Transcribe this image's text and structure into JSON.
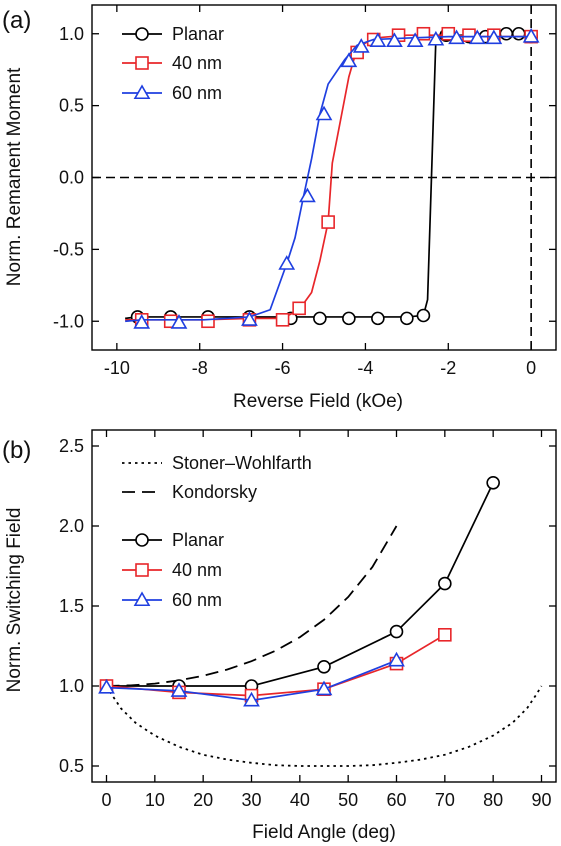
{
  "chart_data": [
    {
      "type": "line",
      "panel_label": "(a)",
      "xlabel": "Reverse Field (kOe)",
      "ylabel": "Norm. Remanent Moment",
      "xlim": [
        -10.6,
        0.6
      ],
      "ylim": [
        -1.2,
        1.2
      ],
      "xticks": [
        -10,
        -8,
        -6,
        -4,
        -2,
        0
      ],
      "xtick_labels": [
        "-10",
        "-8",
        "-6",
        "-4",
        "-2",
        "0"
      ],
      "yticks": [
        -1.0,
        -0.5,
        0.0,
        0.5,
        1.0
      ],
      "ytick_labels": [
        "-1.0",
        "-0.5",
        "0.0",
        "0.5",
        "1.0"
      ],
      "legend_position": "top-left",
      "reference_lines": [
        {
          "orientation": "horizontal",
          "value": 0,
          "style": "dashed"
        },
        {
          "orientation": "vertical",
          "value": 0,
          "style": "dashed"
        }
      ],
      "series": [
        {
          "name": "Planar",
          "color": "#000000",
          "marker": "circle",
          "line": [
            [
              -9.8,
              -0.98
            ],
            [
              -9.5,
              -0.97
            ],
            [
              -8.7,
              -0.97
            ],
            [
              -7.8,
              -0.97
            ],
            [
              -6.8,
              -0.97
            ],
            [
              -5.8,
              -0.97
            ],
            [
              -5.1,
              -0.97
            ],
            [
              -4.4,
              -0.97
            ],
            [
              -3.7,
              -0.97
            ],
            [
              -3.0,
              -0.97
            ],
            [
              -2.6,
              -0.96
            ],
            [
              -2.5,
              -0.85
            ],
            [
              -2.3,
              0.96
            ],
            [
              -2.0,
              0.99
            ],
            [
              -1.5,
              0.99
            ],
            [
              -0.9,
              0.99
            ],
            [
              -0.4,
              0.99
            ],
            [
              0,
              0.99
            ]
          ],
          "markers": [
            [
              -9.5,
              -0.97
            ],
            [
              -8.7,
              -0.97
            ],
            [
              -7.8,
              -0.97
            ],
            [
              -6.8,
              -0.97
            ],
            [
              -5.8,
              -0.98
            ],
            [
              -5.1,
              -0.98
            ],
            [
              -4.4,
              -0.98
            ],
            [
              -3.7,
              -0.98
            ],
            [
              -3.0,
              -0.98
            ],
            [
              -2.6,
              -0.96
            ],
            [
              -2.05,
              0.99
            ],
            [
              -1.5,
              0.98
            ],
            [
              -1.1,
              0.98
            ],
            [
              -0.6,
              1.0
            ],
            [
              -0.3,
              1.0
            ],
            [
              0,
              0.98
            ]
          ]
        },
        {
          "name": "40 nm",
          "color": "#e8262a",
          "marker": "square",
          "line": [
            [
              -9.8,
              -0.99
            ],
            [
              -9.4,
              -0.99
            ],
            [
              -8.7,
              -0.99
            ],
            [
              -7.9,
              -0.99
            ],
            [
              -6.8,
              -0.98
            ],
            [
              -6.0,
              -0.98
            ],
            [
              -5.6,
              -0.92
            ],
            [
              -5.3,
              -0.8
            ],
            [
              -5.1,
              -0.58
            ],
            [
              -4.9,
              -0.31
            ],
            [
              -4.8,
              0.1
            ],
            [
              -4.6,
              0.4
            ],
            [
              -4.4,
              0.7
            ],
            [
              -4.2,
              0.9
            ],
            [
              -3.8,
              0.97
            ],
            [
              -3.0,
              0.99
            ],
            [
              -2.0,
              0.99
            ],
            [
              -1.2,
              0.98
            ],
            [
              0,
              0.98
            ]
          ],
          "markers": [
            [
              -9.4,
              -0.99
            ],
            [
              -8.7,
              -1.0
            ],
            [
              -7.8,
              -1.0
            ],
            [
              -6.8,
              -0.99
            ],
            [
              -6.0,
              -0.99
            ],
            [
              -5.6,
              -0.91
            ],
            [
              -4.9,
              -0.31
            ],
            [
              -4.2,
              0.87
            ],
            [
              -3.8,
              0.96
            ],
            [
              -3.2,
              0.99
            ],
            [
              -2.6,
              1.0
            ],
            [
              -2.0,
              1.0
            ],
            [
              -1.5,
              0.99
            ],
            [
              -0.9,
              0.99
            ],
            [
              0,
              0.98
            ]
          ]
        },
        {
          "name": "60 nm",
          "color": "#1f3fe0",
          "marker": "triangle",
          "line": [
            [
              -9.8,
              -1.0
            ],
            [
              -9.4,
              -0.99
            ],
            [
              -8.5,
              -0.99
            ],
            [
              -7.9,
              -0.99
            ],
            [
              -6.8,
              -0.97
            ],
            [
              -6.3,
              -0.92
            ],
            [
              -5.9,
              -0.6
            ],
            [
              -5.7,
              -0.42
            ],
            [
              -5.5,
              -0.14
            ],
            [
              -5.3,
              0.13
            ],
            [
              -5.1,
              0.44
            ],
            [
              -4.9,
              0.65
            ],
            [
              -4.5,
              0.82
            ],
            [
              -4.2,
              0.92
            ],
            [
              -3.8,
              0.96
            ],
            [
              -3.0,
              0.97
            ],
            [
              -2.0,
              0.98
            ],
            [
              -1.2,
              0.98
            ],
            [
              0,
              0.98
            ]
          ],
          "markers": [
            [
              -9.4,
              -1.01
            ],
            [
              -8.5,
              -1.01
            ],
            [
              -6.8,
              -0.99
            ],
            [
              -5.9,
              -0.6
            ],
            [
              -5.4,
              -0.13
            ],
            [
              -5.0,
              0.44
            ],
            [
              -4.4,
              0.81
            ],
            [
              -4.1,
              0.91
            ],
            [
              -3.7,
              0.95
            ],
            [
              -3.3,
              0.95
            ],
            [
              -2.8,
              0.95
            ],
            [
              -2.3,
              0.96
            ],
            [
              -1.8,
              0.97
            ],
            [
              -1.3,
              0.97
            ],
            [
              -0.9,
              0.97
            ],
            [
              0,
              0.98
            ]
          ]
        }
      ]
    },
    {
      "type": "line",
      "panel_label": "(b)",
      "xlabel": "Field Angle (deg)",
      "ylabel": "Norm. Switching Field",
      "xlim": [
        -3,
        93
      ],
      "ylim": [
        0.4,
        2.6
      ],
      "xticks": [
        0,
        10,
        20,
        30,
        40,
        50,
        60,
        70,
        80,
        90
      ],
      "xtick_labels": [
        "0",
        "10",
        "20",
        "30",
        "40",
        "50",
        "60",
        "70",
        "80",
        "90"
      ],
      "yticks": [
        0.5,
        1.0,
        1.5,
        2.0,
        2.5
      ],
      "ytick_labels": [
        "0.5",
        "1.0",
        "1.5",
        "2.0",
        "2.5"
      ],
      "legend_position": "top-left",
      "series": [
        {
          "name": "Stoner–Wohlfarth",
          "color": "#000000",
          "style": "dotted",
          "line": [
            [
              0,
              1.0
            ],
            [
              1,
              0.95
            ],
            [
              3,
              0.86
            ],
            [
              6,
              0.77
            ],
            [
              10,
              0.69
            ],
            [
              15,
              0.62
            ],
            [
              20,
              0.57
            ],
            [
              25,
              0.54
            ],
            [
              30,
              0.52
            ],
            [
              35,
              0.505
            ],
            [
              40,
              0.5
            ],
            [
              45,
              0.5
            ],
            [
              50,
              0.5
            ],
            [
              55,
              0.505
            ],
            [
              60,
              0.52
            ],
            [
              65,
              0.54
            ],
            [
              70,
              0.57
            ],
            [
              75,
              0.62
            ],
            [
              80,
              0.69
            ],
            [
              84,
              0.77
            ],
            [
              87,
              0.86
            ],
            [
              89,
              0.95
            ],
            [
              90,
              1.0
            ]
          ]
        },
        {
          "name": "Kondorsky",
          "color": "#000000",
          "style": "dashed",
          "line": [
            [
              0,
              1.0
            ],
            [
              5,
              1.004
            ],
            [
              10,
              1.015
            ],
            [
              15,
              1.035
            ],
            [
              20,
              1.064
            ],
            [
              25,
              1.103
            ],
            [
              30,
              1.155
            ],
            [
              35,
              1.221
            ],
            [
              40,
              1.305
            ],
            [
              45,
              1.414
            ],
            [
              50,
              1.556
            ],
            [
              55,
              1.743
            ],
            [
              60,
              2.0
            ]
          ]
        },
        {
          "name": "Planar",
          "color": "#000000",
          "marker": "circle",
          "points": [
            [
              0,
              1.0
            ],
            [
              15,
              1.0
            ],
            [
              30,
              1.0
            ],
            [
              45,
              1.12
            ],
            [
              60,
              1.34
            ],
            [
              70,
              1.64
            ],
            [
              80,
              2.27
            ]
          ]
        },
        {
          "name": "40 nm",
          "color": "#e8262a",
          "marker": "square",
          "points": [
            [
              0,
              1.0
            ],
            [
              15,
              0.96
            ],
            [
              30,
              0.94
            ],
            [
              45,
              0.98
            ],
            [
              60,
              1.14
            ],
            [
              70,
              1.32
            ]
          ]
        },
        {
          "name": "60 nm",
          "color": "#1f3fe0",
          "marker": "triangle",
          "points": [
            [
              0,
              0.99
            ],
            [
              15,
              0.97
            ],
            [
              30,
              0.91
            ],
            [
              45,
              0.98
            ],
            [
              60,
              1.16
            ]
          ]
        }
      ]
    }
  ]
}
